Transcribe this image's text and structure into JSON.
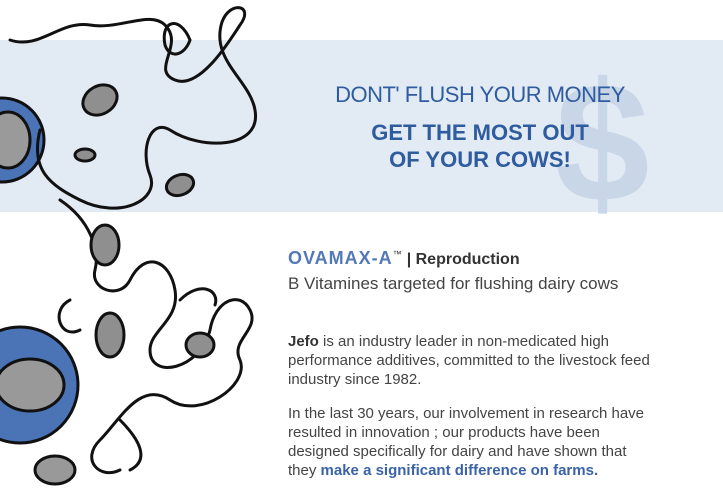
{
  "headline": {
    "line1": "DONT' FLUSH YOUR MONEY",
    "line2": "GET THE MOST OUT",
    "line3": "OF YOUR COWS!",
    "symbol": "$"
  },
  "product": {
    "name": "OVAMAX-A",
    "trademark": "™",
    "category": "| Reproduction",
    "tagline": "B Vitamines targeted for flushing dairy cows"
  },
  "paragraphs": [
    {
      "bold": "Jefo",
      "text": " is an industry leader in non-medicated high performance additives, committed to the livestock feed industry since 1982."
    },
    {
      "text": "In the last 30 years, our involvement in research have resulted in innovation ; our products have been designed specifically for dairy and have shown that they ",
      "highlight": "make a significant difference on farms."
    }
  ]
}
